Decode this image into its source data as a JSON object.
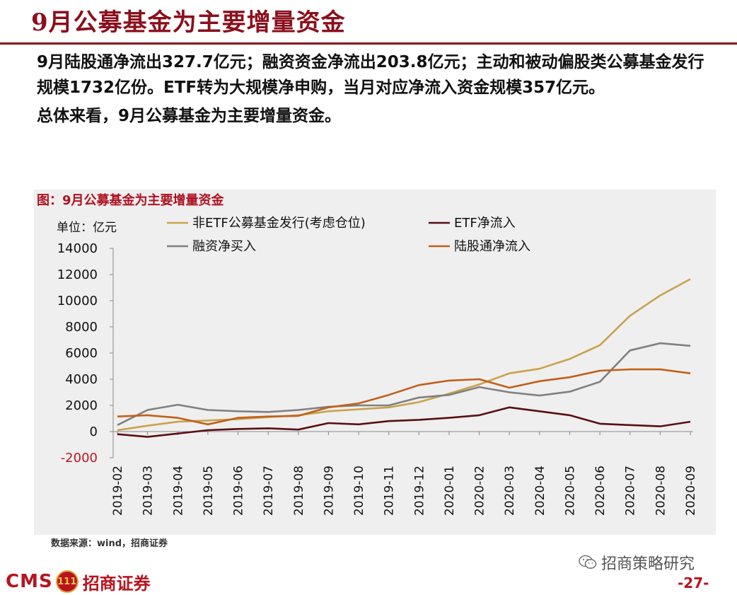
{
  "header": {
    "title": "9月公募基金为主要增量资金"
  },
  "body": {
    "paragraph1": "9月陆股通净流出327.7亿元；融资资金净流出203.8亿元；主动和被动偏股类公募基金发行规模1732亿份。ETF转为大规模净申购，当月对应净流入资金规模357亿元。",
    "paragraph2": "总体来看，9月公募基金为主要增量资金。"
  },
  "figure": {
    "caption": "图：9月公募基金为主要增量资金",
    "source": "数据来源：wind，招商证券"
  },
  "chart_data": {
    "type": "line",
    "title": "图：9月公募基金为主要增量资金",
    "unit_label": "单位：亿元",
    "xlabel": "",
    "ylabel": "",
    "ylim": [
      -2000,
      14000
    ],
    "yticks": [
      -2000,
      0,
      2000,
      4000,
      6000,
      8000,
      10000,
      12000,
      14000
    ],
    "grid": false,
    "legend_position": "top",
    "categories": [
      "2019-02",
      "2019-03",
      "2019-04",
      "2019-05",
      "2019-06",
      "2019-07",
      "2019-08",
      "2019-09",
      "2019-10",
      "2019-11",
      "2019-12",
      "2020-01",
      "2020-02",
      "2020-03",
      "2020-04",
      "2020-05",
      "2020-06",
      "2020-07",
      "2020-08",
      "2020-09"
    ],
    "series": [
      {
        "name": "非ETF公募基金发行(考虑仓位)",
        "color": "#c9a24b",
        "values": [
          100,
          450,
          750,
          850,
          950,
          1100,
          1250,
          1550,
          1700,
          1850,
          2250,
          2900,
          3600,
          4450,
          4800,
          5550,
          6600,
          8850,
          10400,
          11650
        ]
      },
      {
        "name": "ETF净流入",
        "color": "#5a0f12",
        "values": [
          -200,
          -400,
          -150,
          100,
          200,
          250,
          150,
          650,
          550,
          800,
          900,
          1050,
          1250,
          1850,
          1550,
          1250,
          600,
          500,
          400,
          750
        ]
      },
      {
        "name": "融资净买入",
        "color": "#808080",
        "values": [
          500,
          1650,
          2050,
          1650,
          1550,
          1500,
          1650,
          1900,
          2000,
          2000,
          2600,
          2800,
          3400,
          3000,
          2750,
          3050,
          3800,
          6200,
          6750,
          6550
        ]
      },
      {
        "name": "陆股通净流入",
        "color": "#c0601a",
        "values": [
          1150,
          1250,
          1050,
          550,
          1050,
          1150,
          1200,
          1850,
          2150,
          2800,
          3550,
          3900,
          4000,
          3350,
          3850,
          4150,
          4650,
          4750,
          4750,
          4450
        ]
      }
    ]
  },
  "footer": {
    "logo_text": "CMS",
    "logo_badge": "111",
    "company": "招商证券",
    "wechat_account": "招商策略研究",
    "page_number": "-27-"
  }
}
